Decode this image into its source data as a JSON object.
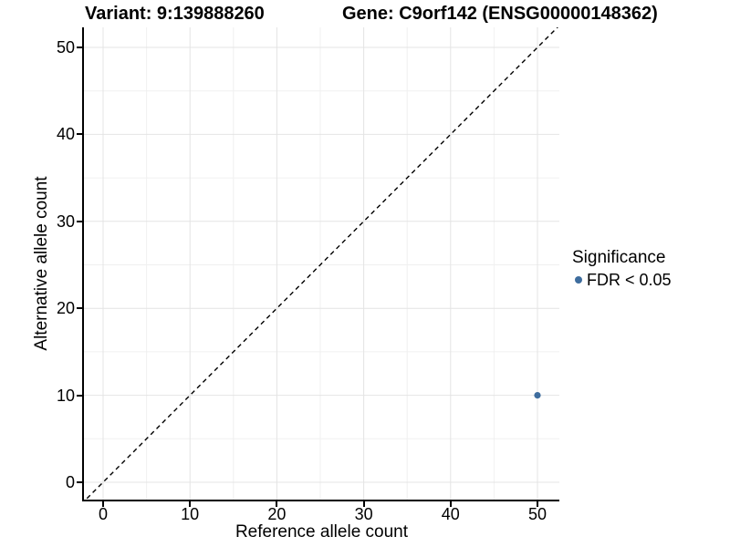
{
  "titles": {
    "variant": "Variant: 9:139888260",
    "gene": "Gene: C9orf142 (ENSG00000148362)"
  },
  "axes": {
    "x": {
      "label": "Reference allele count",
      "ticks": [
        "0",
        "10",
        "20",
        "30",
        "40",
        "50"
      ]
    },
    "y": {
      "label": "Alternative allele count",
      "ticks": [
        "0",
        "10",
        "20",
        "30",
        "40",
        "50"
      ]
    }
  },
  "legend": {
    "title": "Significance",
    "items": [
      {
        "label": "FDR < 0.05",
        "color": "#3E6D9E",
        "shape": "circle"
      }
    ]
  },
  "chart_data": {
    "type": "scatter",
    "title": "Variant: 9:139888260 | Gene: C9orf142 (ENSG00000148362)",
    "xlabel": "Reference allele count",
    "ylabel": "Alternative allele count",
    "xlim": [
      -2.2,
      52.5
    ],
    "ylim": [
      -2.1,
      52.4
    ],
    "x_ticks": [
      0,
      10,
      20,
      30,
      40,
      50
    ],
    "y_ticks": [
      0,
      10,
      20,
      30,
      40,
      50
    ],
    "grid": "major+minor",
    "legend_position": "right",
    "series": [
      {
        "name": "FDR < 0.05",
        "color": "#3E6D9E",
        "points": [
          {
            "x": 50,
            "y": 10
          }
        ]
      }
    ],
    "reference_line": {
      "kind": "identity y=x",
      "style": "dashed",
      "color": "#000000"
    }
  },
  "colors": {
    "background": "#FFFFFF",
    "grid_major": "#E4E4E4",
    "grid_minor": "#F0F0F0",
    "axis_line": "#000000",
    "text": "#000000",
    "point": "#3E6D9E"
  }
}
